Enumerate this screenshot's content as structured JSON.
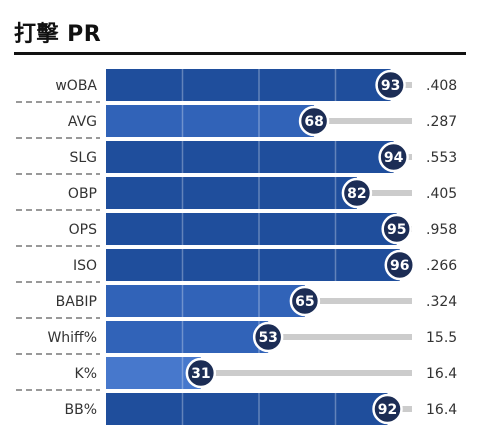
{
  "chart_data": {
    "type": "bar",
    "title": "打擊 PR",
    "categories": [
      "wOBA",
      "AVG",
      "SLG",
      "OBP",
      "OPS",
      "ISO",
      "BABIP",
      "Whiff%",
      "K%",
      "BB%"
    ],
    "values": [
      93,
      68,
      94,
      82,
      95,
      96,
      65,
      53,
      31,
      92
    ],
    "stat_values": [
      ".408",
      ".287",
      ".553",
      ".405",
      ".958",
      ".266",
      ".324",
      "15.5",
      "16.4",
      "16.4"
    ],
    "xlim": [
      0,
      100
    ],
    "grid": true,
    "colors": {
      "bar_dark": "#1f4e9c",
      "bar_mid": "#3163b8",
      "bar_light": "#4778cc",
      "badge": "#1c2d55",
      "track": "#cccccc",
      "separator": "#333333"
    }
  }
}
